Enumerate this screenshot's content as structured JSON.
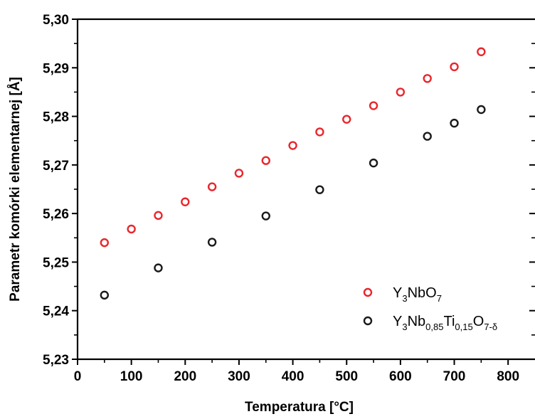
{
  "chart_data": {
    "type": "scatter",
    "title": "",
    "xlabel": "Temperatura [°C]",
    "ylabel": "Parametr komórki elementarnej [Å]",
    "xlim": [
      0,
      850
    ],
    "ylim": [
      5.23,
      5.3
    ],
    "xticks": [
      0,
      100,
      200,
      300,
      400,
      500,
      600,
      700,
      800
    ],
    "xtick_labels": [
      "0",
      "100",
      "200",
      "300",
      "400",
      "500",
      "600",
      "700",
      "800"
    ],
    "yticks": [
      5.23,
      5.24,
      5.25,
      5.26,
      5.27,
      5.28,
      5.29,
      5.3
    ],
    "ytick_labels": [
      "5,23",
      "5,24",
      "5,25",
      "5,26",
      "5,27",
      "5,28",
      "5,29",
      "5,30"
    ],
    "grid": false,
    "legend_position": "bottom-right",
    "series": [
      {
        "name": "Y3NbO7",
        "legend": {
          "parts": [
            [
              "Y",
              ""
            ],
            [
              "3",
              "sub"
            ],
            [
              "NbO",
              ""
            ],
            [
              "7",
              "sub"
            ]
          ]
        },
        "color": "#e8262c",
        "marker": "open-circle",
        "x": [
          50,
          100,
          150,
          200,
          250,
          300,
          350,
          400,
          450,
          500,
          550,
          600,
          650,
          700,
          750
        ],
        "y": [
          5.254,
          5.2568,
          5.2596,
          5.2624,
          5.2655,
          5.2683,
          5.2709,
          5.274,
          5.2768,
          5.2794,
          5.2822,
          5.285,
          5.2878,
          5.2902,
          5.2933
        ]
      },
      {
        "name": "Y3Nb0,85Ti0,15O7-δ",
        "legend": {
          "parts": [
            [
              "Y",
              ""
            ],
            [
              "3",
              "sub"
            ],
            [
              "Nb",
              ""
            ],
            [
              "0,85",
              "sub"
            ],
            [
              "Ti",
              ""
            ],
            [
              "0,15",
              "sub"
            ],
            [
              "O",
              ""
            ],
            [
              "7-δ",
              "sub"
            ]
          ]
        },
        "color": "#1a1a1a",
        "marker": "open-circle",
        "x": [
          50,
          150,
          250,
          350,
          450,
          550,
          650,
          700,
          750
        ],
        "y": [
          5.2432,
          5.2488,
          5.2541,
          5.2595,
          5.2649,
          5.2704,
          5.2759,
          5.2786,
          5.2814
        ]
      }
    ]
  }
}
